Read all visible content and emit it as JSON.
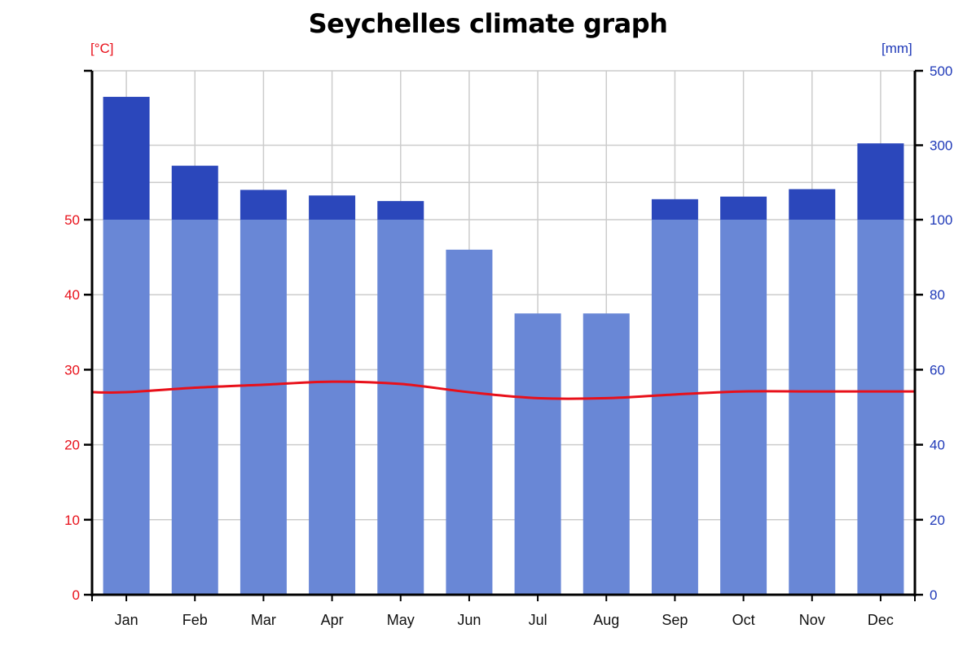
{
  "chart_data": {
    "type": "bar",
    "title": "Seychelles climate graph",
    "categories": [
      "Jan",
      "Feb",
      "Mar",
      "Apr",
      "May",
      "Jun",
      "Jul",
      "Aug",
      "Sep",
      "Oct",
      "Nov",
      "Dec"
    ],
    "series": [
      {
        "kind": "bar",
        "axis": "right",
        "values": [
          430,
          245,
          180,
          165,
          150,
          92,
          75,
          75,
          155,
          162,
          182,
          305
        ]
      },
      {
        "kind": "line",
        "axis": "left",
        "values": [
          27.0,
          27.6,
          28.0,
          28.4,
          28.1,
          27.0,
          26.2,
          26.2,
          26.7,
          27.1,
          27.1,
          27.1
        ]
      }
    ],
    "left_axis": {
      "unit": "[°C]",
      "ticks": [
        0,
        10,
        20,
        30,
        40,
        50
      ],
      "range": [
        0,
        50
      ],
      "color": "#e8101a"
    },
    "right_axis": {
      "unit": "[mm]",
      "ticks_linear": [
        0,
        20,
        40,
        60,
        80,
        100
      ],
      "linear_range": [
        0,
        100
      ],
      "ticks_compressed": [
        300,
        500
      ],
      "compressed_range": [
        100,
        500
      ],
      "color": "#1f39b8"
    },
    "colors": {
      "bar_light": "#6987d6",
      "bar_dark": "#2b47bb",
      "line": "#e8101a",
      "grid": "#cccccc"
    },
    "grid": true
  }
}
